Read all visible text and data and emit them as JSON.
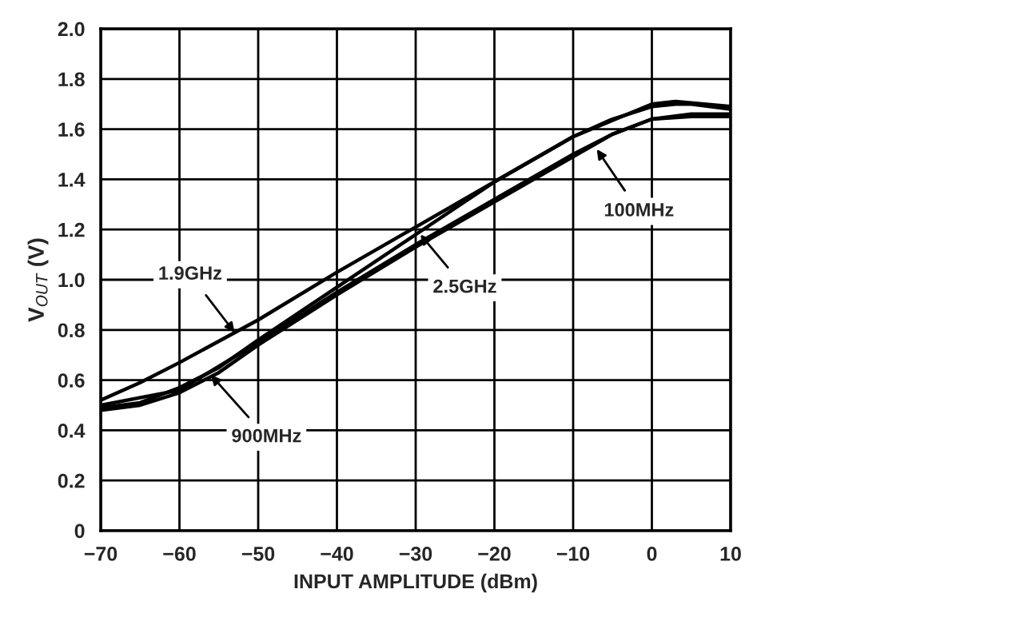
{
  "chart_data": {
    "type": "line",
    "xlabel": "INPUT AMPLITUDE (dBm)",
    "ylabel": "V$_{OUT}$ (V)",
    "xlim": [
      -70,
      10
    ],
    "xticks": [
      {
        "value": -70,
        "label": "−70"
      },
      {
        "value": -60,
        "label": "−60"
      },
      {
        "value": -50,
        "label": "−50"
      },
      {
        "value": -40,
        "label": "−40"
      },
      {
        "value": -30,
        "label": "−30"
      },
      {
        "value": -20,
        "label": "−20"
      },
      {
        "value": -10,
        "label": "−10"
      },
      0,
      10
    ],
    "ylim": [
      0,
      2.0
    ],
    "yticks": [
      0,
      {
        "value": 0.2,
        "label": "0.2"
      },
      {
        "value": 0.4,
        "label": "0.4"
      },
      {
        "value": 0.6,
        "label": "0.6"
      },
      {
        "value": 0.8,
        "label": "0.8"
      },
      {
        "value": 1.0,
        "label": "1.0"
      },
      {
        "value": 1.2,
        "label": "1.2"
      },
      {
        "value": 1.4,
        "label": "1.4"
      },
      {
        "value": 1.6,
        "label": "1.6"
      },
      {
        "value": 1.8,
        "label": "1.8"
      },
      {
        "value": 2.0,
        "label": "2.0"
      }
    ],
    "grid": true,
    "legend": false,
    "marker": "none",
    "line_style": "solid",
    "series": [
      {
        "color": "#000000",
        "x": [
          -70,
          -65,
          -60,
          -50,
          -40,
          -30,
          -20,
          -10,
          -5,
          0,
          3,
          5,
          10
        ],
        "values": [
          0.52,
          0.59,
          0.67,
          0.84,
          1.03,
          1.21,
          1.39,
          1.57,
          1.64,
          1.69,
          1.7,
          1.7,
          1.68
        ]
      },
      {
        "color": "#000000",
        "x": [
          -70,
          -65,
          -60,
          -55,
          -50,
          -40,
          -30,
          -20,
          -10,
          0,
          3,
          10
        ],
        "values": [
          0.49,
          0.51,
          0.57,
          0.65,
          0.76,
          0.97,
          1.18,
          1.39,
          1.57,
          1.7,
          1.71,
          1.69
        ]
      },
      {
        "color": "#000000",
        "x": [
          -70,
          -65,
          -60,
          -55,
          -50,
          -40,
          -30,
          -20,
          -10,
          -5,
          0,
          5,
          10
        ],
        "values": [
          0.48,
          0.5,
          0.55,
          0.63,
          0.74,
          0.94,
          1.13,
          1.31,
          1.49,
          1.58,
          1.64,
          1.65,
          1.65
        ]
      },
      {
        "color": "#000000",
        "x": [
          -70,
          -60,
          -50,
          -40,
          -30,
          -20,
          -10,
          -5,
          0,
          5,
          10
        ],
        "values": [
          0.5,
          0.56,
          0.75,
          0.95,
          1.14,
          1.32,
          1.5,
          1.58,
          1.64,
          1.66,
          1.66
        ]
      }
    ],
    "annotations": [
      {
        "text": "1.9GHz",
        "x": -53,
        "y": 0.79
      },
      {
        "text": "2.5GHz",
        "x": -29.4,
        "y": 1.18
      },
      {
        "text": "900MHz",
        "x": -56,
        "y": 0.62
      },
      {
        "text": "100MHz",
        "x": -7,
        "y": 1.52
      }
    ]
  }
}
